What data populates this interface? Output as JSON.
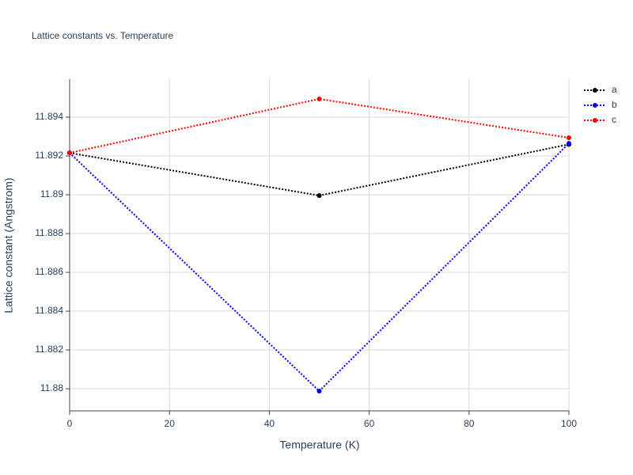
{
  "chart_data": {
    "type": "line",
    "title": "Lattice constants vs. Temperature",
    "x_label": "Temperature (K)",
    "y_label": "Lattice constant (Angstrom)",
    "x": [
      0,
      50,
      100
    ],
    "series": [
      {
        "name": "a",
        "color": "#000000",
        "values": [
          11.89216,
          11.88996,
          11.8926
        ]
      },
      {
        "name": "b",
        "color": "#0000ff",
        "values": [
          11.89216,
          11.87988,
          11.89265
        ]
      },
      {
        "name": "c",
        "color": "#ff0000",
        "values": [
          11.89216,
          11.89494,
          11.89294
        ]
      }
    ],
    "xlim": [
      0,
      100
    ],
    "xticks": [
      0,
      20,
      40,
      60,
      80,
      100
    ],
    "ylim": [
      11.87886,
      11.89596
    ],
    "yticks": [
      11.88,
      11.882,
      11.884,
      11.886,
      11.888,
      11.89,
      11.892,
      11.894
    ],
    "grid": true,
    "legend": "top-right"
  }
}
